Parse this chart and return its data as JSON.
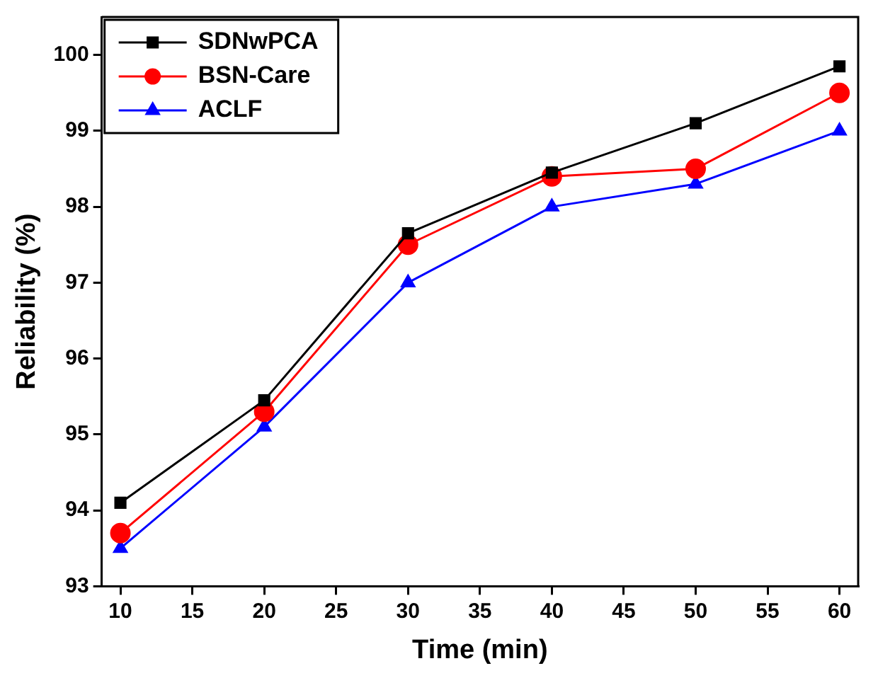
{
  "chart_data": {
    "type": "line",
    "xlabel": "Time (min)",
    "ylabel": "Reliability (%)",
    "x": [
      10,
      20,
      30,
      40,
      50,
      60
    ],
    "series": [
      {
        "name": "SDNwPCA",
        "color": "#000000",
        "marker": "square",
        "values": [
          94.1,
          95.45,
          97.65,
          98.45,
          99.1,
          99.85
        ]
      },
      {
        "name": "BSN-Care",
        "color": "#ff0000",
        "marker": "circle",
        "values": [
          93.7,
          95.3,
          97.5,
          98.4,
          98.5,
          99.5
        ]
      },
      {
        "name": "ACLF",
        "color": "#0000ff",
        "marker": "triangle",
        "values": [
          93.5,
          95.1,
          97.0,
          98.0,
          98.3,
          99.0
        ]
      }
    ],
    "xlim": [
      8.7,
      61.3
    ],
    "xticks": [
      10,
      15,
      20,
      25,
      30,
      35,
      40,
      45,
      50,
      55,
      60
    ],
    "ylim": [
      93,
      100.5
    ],
    "yticks": [
      93,
      94,
      95,
      96,
      97,
      98,
      99,
      100
    ],
    "grid": false,
    "legend": "top left"
  }
}
